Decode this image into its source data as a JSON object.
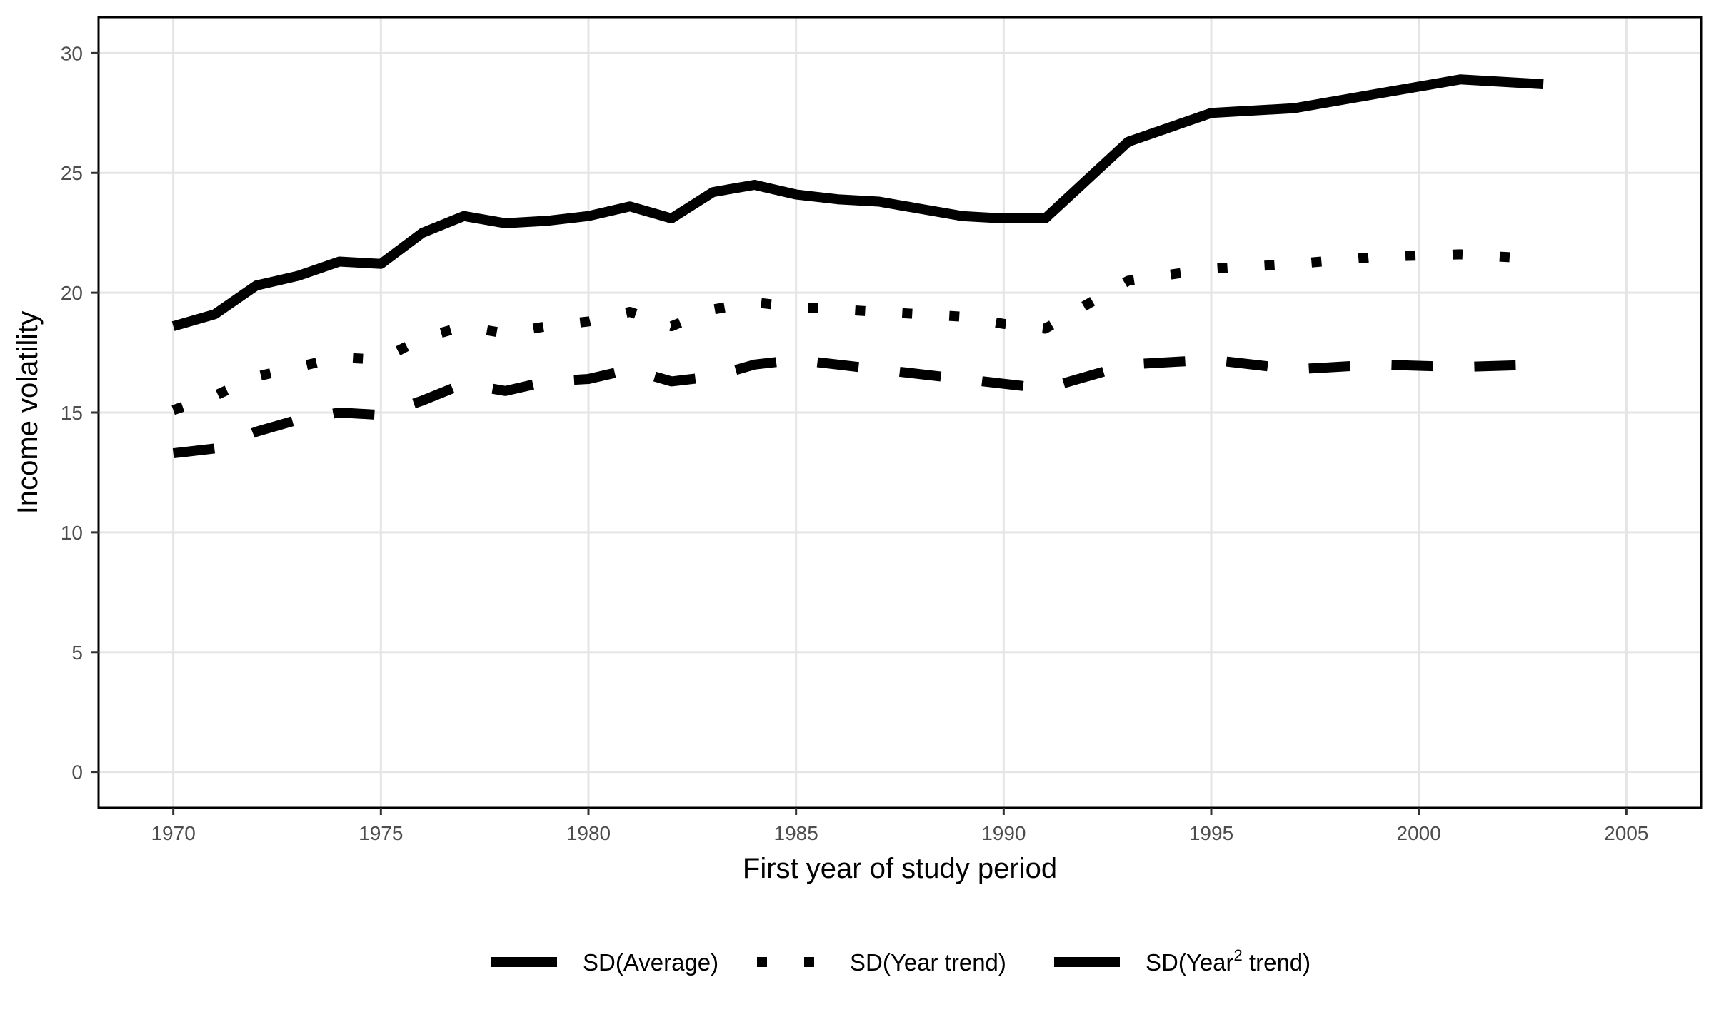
{
  "chart_data": {
    "type": "line",
    "xlabel": "First year of study period",
    "ylabel": "Income volatility",
    "xlim": [
      1968.2,
      2006.8
    ],
    "ylim": [
      -1.5,
      31.5
    ],
    "x_ticks": [
      1970,
      1975,
      1980,
      1985,
      1990,
      1995,
      2000,
      2005
    ],
    "y_ticks": [
      0,
      5,
      10,
      15,
      20,
      25,
      30
    ],
    "grid": true,
    "legend_position": "bottom",
    "series": [
      {
        "name": "SD(Average)",
        "linestyle": "solid",
        "x": [
          1970,
          1971,
          1972,
          1973,
          1974,
          1975,
          1976,
          1977,
          1978,
          1979,
          1980,
          1981,
          1982,
          1983,
          1984,
          1985,
          1986,
          1987,
          1988,
          1989,
          1990,
          1991,
          1993,
          1995,
          1997,
          1999,
          2001,
          2003
        ],
        "values": [
          18.6,
          19.1,
          20.3,
          20.7,
          21.3,
          21.2,
          22.5,
          23.2,
          22.9,
          23.0,
          23.2,
          23.6,
          23.1,
          24.2,
          24.5,
          24.1,
          23.9,
          23.8,
          23.5,
          23.2,
          23.1,
          23.1,
          26.3,
          27.5,
          27.7,
          28.3,
          28.9,
          28.7
        ]
      },
      {
        "name": "SD(Year trend)",
        "linestyle": "dotted",
        "x": [
          1970,
          1971,
          1972,
          1973,
          1974,
          1975,
          1976,
          1977,
          1978,
          1979,
          1980,
          1981,
          1982,
          1983,
          1984,
          1985,
          1986,
          1987,
          1988,
          1989,
          1990,
          1991,
          1993,
          1995,
          1997,
          1999,
          2001,
          2003
        ],
        "values": [
          15.1,
          15.7,
          16.5,
          16.9,
          17.3,
          17.2,
          18.1,
          18.6,
          18.3,
          18.6,
          18.8,
          19.2,
          18.6,
          19.3,
          19.6,
          19.4,
          19.3,
          19.2,
          19.1,
          19.0,
          18.7,
          18.5,
          20.5,
          21.0,
          21.2,
          21.5,
          21.6,
          21.4
        ]
      },
      {
        "name": "SD(Year² trend)",
        "linestyle": "dashed",
        "x": [
          1970,
          1971,
          1972,
          1973,
          1974,
          1975,
          1976,
          1977,
          1978,
          1979,
          1980,
          1981,
          1982,
          1983,
          1984,
          1985,
          1986,
          1987,
          1988,
          1989,
          1990,
          1991,
          1993,
          1995,
          1997,
          1999,
          2001,
          2003
        ],
        "values": [
          13.3,
          13.5,
          14.2,
          14.7,
          15.0,
          14.9,
          15.5,
          16.2,
          15.9,
          16.3,
          16.4,
          16.8,
          16.3,
          16.5,
          17.0,
          17.2,
          17.0,
          16.8,
          16.6,
          16.4,
          16.2,
          16.0,
          17.0,
          17.2,
          16.8,
          17.0,
          16.9,
          17.0
        ]
      }
    ],
    "legend_entries": [
      {
        "text": "SD(Average)"
      },
      {
        "text": "SD(Year trend)"
      },
      {
        "prefix": "SD(Year",
        "superscript": "2",
        "suffix": " trend)"
      }
    ]
  }
}
